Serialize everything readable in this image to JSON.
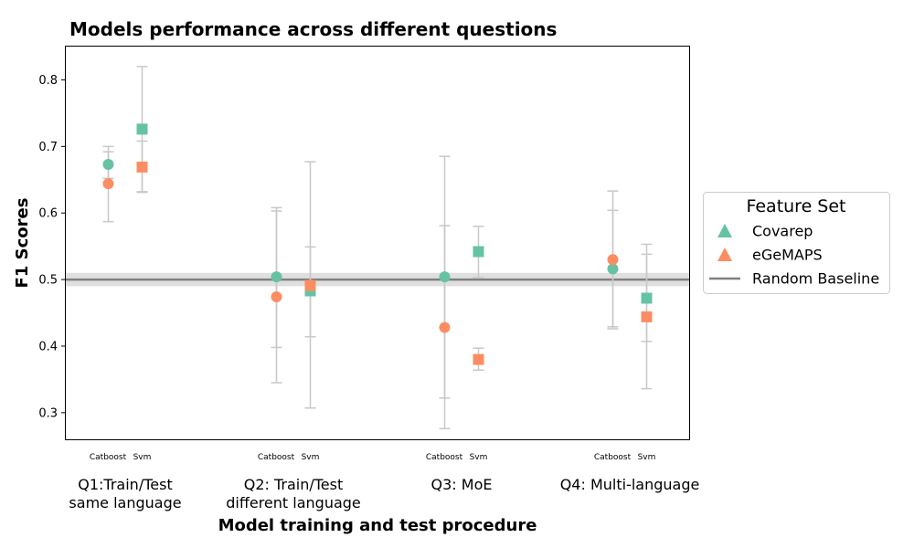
{
  "chart_data": {
    "type": "scatter",
    "title": "Models performance across different questions",
    "xlabel": "Model training and test procedure",
    "ylabel": "F1 Scores",
    "ylim": [
      0.26,
      0.85
    ],
    "yticks": [
      "0.3",
      "0.4",
      "0.5",
      "0.6",
      "0.7",
      "0.8"
    ],
    "groups": [
      {
        "label_lines": [
          "Q1:Train/Test",
          "same language"
        ],
        "models": [
          "Catboost",
          "Svm"
        ]
      },
      {
        "label_lines": [
          "Q2: Train/Test",
          "different language"
        ],
        "models": [
          "Catboost",
          "Svm"
        ]
      },
      {
        "label_lines": [
          "Q3: MoE"
        ],
        "models": [
          "Catboost",
          "Svm"
        ]
      },
      {
        "label_lines": [
          "Q4: Multi-language"
        ],
        "models": [
          "Catboost",
          "Svm"
        ]
      }
    ],
    "baseline": {
      "name": "Random Baseline",
      "value": 0.5,
      "band": [
        0.49,
        0.51
      ],
      "color": "#808080"
    },
    "series": [
      {
        "name": "Covarep",
        "color": "#66c2a5",
        "points": [
          {
            "group": 0,
            "model": "Catboost",
            "value": 0.673,
            "err": [
              0.652,
              0.7
            ]
          },
          {
            "group": 0,
            "model": "Svm",
            "value": 0.726,
            "err": [
              0.631,
              0.82
            ]
          },
          {
            "group": 1,
            "model": "Catboost",
            "value": 0.504,
            "err": [
              0.398,
              0.608
            ]
          },
          {
            "group": 1,
            "model": "Svm",
            "value": 0.483,
            "err": [
              0.414,
              0.549
            ]
          },
          {
            "group": 2,
            "model": "Catboost",
            "value": 0.504,
            "err": [
              0.322,
              0.685
            ]
          },
          {
            "group": 2,
            "model": "Svm",
            "value": 0.542,
            "err": [
              0.503,
              0.58
            ]
          },
          {
            "group": 3,
            "model": "Catboost",
            "value": 0.516,
            "err": [
              0.429,
              0.604
            ]
          },
          {
            "group": 3,
            "model": "Svm",
            "value": 0.472,
            "err": [
              0.407,
              0.538
            ]
          }
        ]
      },
      {
        "name": "eGeMAPS",
        "color": "#fc8d62",
        "points": [
          {
            "group": 0,
            "model": "Catboost",
            "value": 0.644,
            "err": [
              0.587,
              0.692
            ]
          },
          {
            "group": 0,
            "model": "Svm",
            "value": 0.669,
            "err": [
              0.632,
              0.708
            ]
          },
          {
            "group": 1,
            "model": "Catboost",
            "value": 0.474,
            "err": [
              0.345,
              0.603
            ]
          },
          {
            "group": 1,
            "model": "Svm",
            "value": 0.491,
            "err": [
              0.307,
              0.677
            ]
          },
          {
            "group": 2,
            "model": "Catboost",
            "value": 0.428,
            "err": [
              0.276,
              0.581
            ]
          },
          {
            "group": 2,
            "model": "Svm",
            "value": 0.38,
            "err": [
              0.364,
              0.397
            ]
          },
          {
            "group": 3,
            "model": "Catboost",
            "value": 0.53,
            "err": [
              0.426,
              0.633
            ]
          },
          {
            "group": 3,
            "model": "Svm",
            "value": 0.444,
            "err": [
              0.336,
              0.553
            ]
          }
        ]
      }
    ],
    "marker_by_model": {
      "Catboost": "circle",
      "Svm": "square"
    },
    "legend": {
      "title": "Feature Set",
      "placement": "right",
      "entries": [
        {
          "label": "Covarep",
          "color": "#66c2a5",
          "symbol": "triangle"
        },
        {
          "label": "eGeMAPS",
          "color": "#fc8d62",
          "symbol": "triangle"
        },
        {
          "label": "Random Baseline",
          "color": "#808080",
          "symbol": "line"
        }
      ]
    },
    "grid": false,
    "errorbar_color": "#c8c8c8"
  }
}
